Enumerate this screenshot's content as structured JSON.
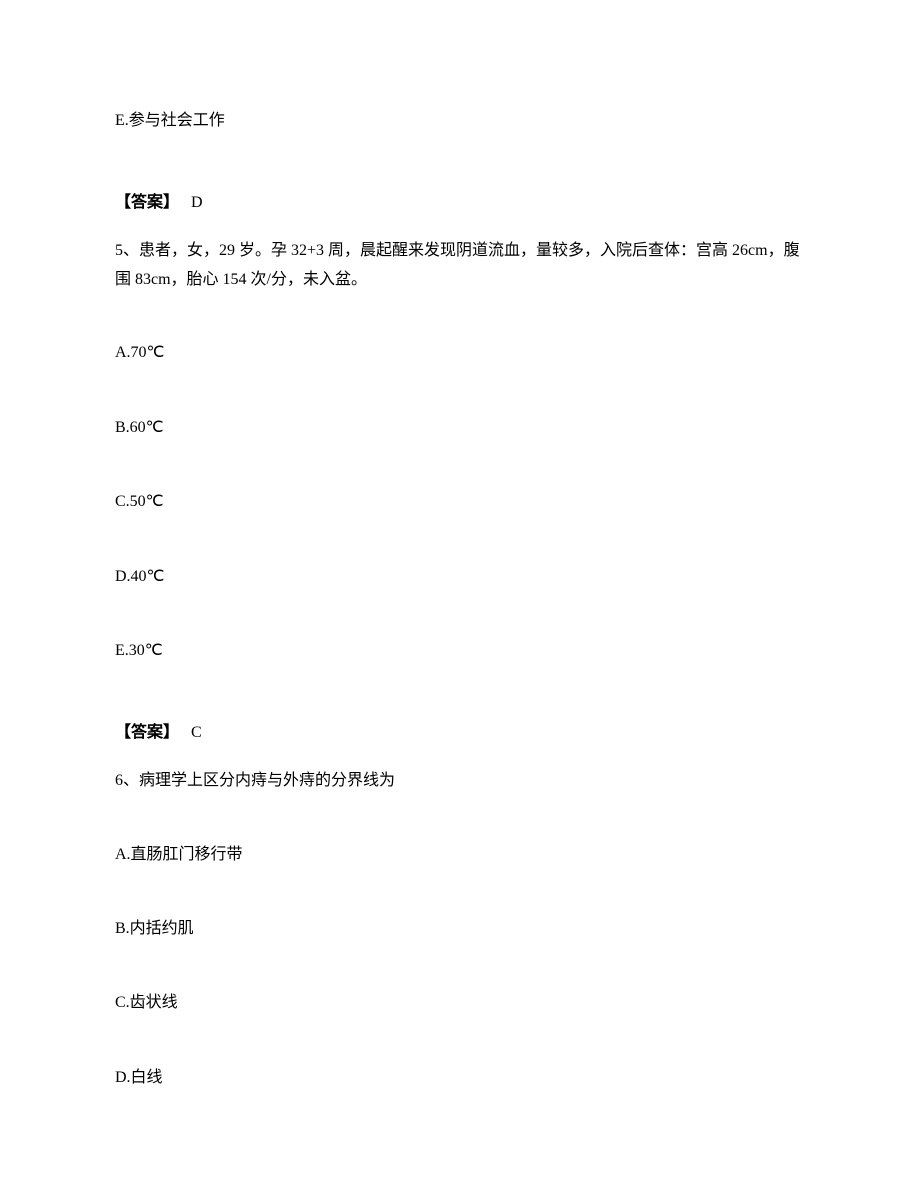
{
  "q4": {
    "option_e": "E.参与社会工作",
    "answer_label": "【答案】",
    "answer_value": "D"
  },
  "q5": {
    "stem": "5、患者，女，29 岁。孕 32+3 周，晨起醒来发现阴道流血，量较多，入院后查体：宫高 26cm，腹围 83cm，胎心 154 次/分，未入盆。",
    "option_a": "A.70℃",
    "option_b": "B.60℃",
    "option_c": "C.50℃",
    "option_d": "D.40℃",
    "option_e": "E.30℃",
    "answer_label": "【答案】",
    "answer_value": "C"
  },
  "q6": {
    "stem": "6、病理学上区分内痔与外痔的分界线为",
    "option_a": "A.直肠肛门移行带",
    "option_b": "B.内括约肌",
    "option_c": "C.齿状线",
    "option_d": "D.白线"
  }
}
